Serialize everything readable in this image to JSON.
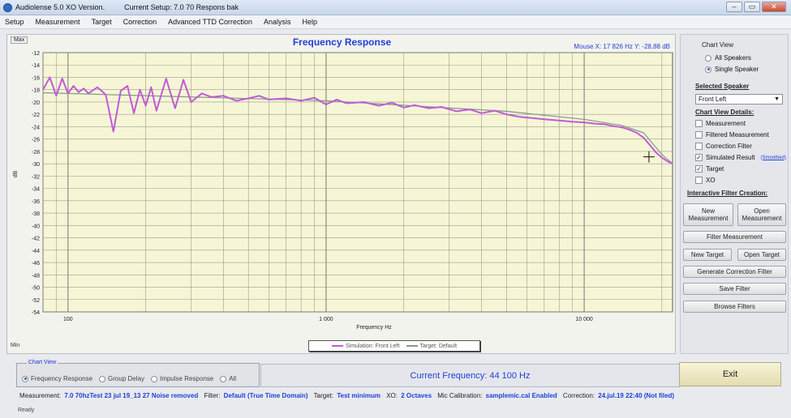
{
  "window": {
    "title": "Audiolense 5.0 XO Version.",
    "current_setup": "Current Setup: 7.0 70 Respons bak",
    "minimize": "–",
    "maximize": "▭",
    "close": "✕"
  },
  "menu": [
    "Setup",
    "Measurement",
    "Target",
    "Correction",
    "Advanced TTD Correction",
    "Analysis",
    "Help"
  ],
  "chart_panel": {
    "max_label": "Max",
    "min_label": "Min",
    "mouse_readout": "Mouse X: 17 826 Hz  Y: -28,88 dB",
    "legend": {
      "simulation": "Simulation: Front Left",
      "target": "Target: Default"
    }
  },
  "chart_data": {
    "type": "line",
    "title": "Frequency Response",
    "xlabel": "Frequency Hz",
    "ylabel": "dB",
    "xscale": "log",
    "xlim": [
      80,
      22000
    ],
    "ylim": [
      -54,
      -12
    ],
    "grid": true,
    "x_tick_labels": [
      "100",
      "1 000",
      "10 000"
    ],
    "x_ticks": [
      100,
      1000,
      10000
    ],
    "y_ticks": [
      -12,
      -14,
      -16,
      -18,
      -20,
      -22,
      -24,
      -26,
      -28,
      -30,
      -32,
      -34,
      -36,
      -38,
      -40,
      -42,
      -44,
      -46,
      -48,
      -50,
      -52,
      -54
    ],
    "series": [
      {
        "name": "Simulation: Front Left",
        "color": "#c25ad8",
        "x": [
          80,
          85,
          90,
          95,
          100,
          105,
          110,
          115,
          120,
          130,
          140,
          150,
          160,
          170,
          180,
          190,
          200,
          210,
          220,
          240,
          260,
          280,
          300,
          330,
          360,
          400,
          450,
          500,
          550,
          600,
          700,
          800,
          900,
          1000,
          1100,
          1200,
          1400,
          1600,
          1800,
          2000,
          2200,
          2500,
          2800,
          3200,
          3600,
          4000,
          4500,
          5000,
          5600,
          6300,
          7000,
          8000,
          9000,
          10000,
          11000,
          12000,
          13000,
          14000,
          15000,
          16000,
          17000,
          18000,
          19000,
          20000,
          21000,
          22000
        ],
        "y": [
          -18.0,
          -16.0,
          -19.0,
          -16.2,
          -18.6,
          -17.4,
          -18.4,
          -17.8,
          -18.6,
          -17.6,
          -18.8,
          -24.8,
          -18.2,
          -17.4,
          -21.8,
          -18.0,
          -20.6,
          -17.6,
          -21.4,
          -16.2,
          -21.0,
          -16.4,
          -20.0,
          -18.6,
          -19.2,
          -19.0,
          -19.8,
          -19.4,
          -19.0,
          -19.6,
          -19.4,
          -19.8,
          -19.3,
          -20.4,
          -19.6,
          -20.2,
          -20.0,
          -20.6,
          -20.1,
          -20.9,
          -20.5,
          -21.0,
          -20.8,
          -21.5,
          -21.2,
          -21.8,
          -21.4,
          -22.0,
          -22.4,
          -22.6,
          -22.8,
          -23.0,
          -23.2,
          -23.3,
          -23.5,
          -23.6,
          -23.9,
          -24.1,
          -24.5,
          -25.0,
          -25.8,
          -27.0,
          -28.2,
          -29.0,
          -29.6,
          -30.0
        ]
      },
      {
        "name": "Target: Default",
        "color": "#7f9a88",
        "x": [
          80,
          1000,
          5000,
          10000,
          14000,
          17000,
          20000,
          22000
        ],
        "y": [
          -18.5,
          -19.8,
          -21.5,
          -22.8,
          -23.8,
          -25.0,
          -28.5,
          -30.0
        ]
      }
    ]
  },
  "sidebar": {
    "chart_view_heading": "Chart View",
    "all_speakers": "All Speakers",
    "single_speaker": "Single Speaker",
    "selected_speaker_heading": "Selected Speaker",
    "selected_speaker_value": "Front Left",
    "chart_view_details_heading": "Chart View Details:",
    "details": [
      {
        "label": "Measurement",
        "checked": false
      },
      {
        "label": "Filtered Measurement",
        "checked": false
      },
      {
        "label": "Correction Filter",
        "checked": false
      },
      {
        "label": "Simulated Result",
        "checked": true
      },
      {
        "label": "Target",
        "checked": true
      },
      {
        "label": "XO",
        "checked": false
      }
    ],
    "smoothed_link": "(Smoothed)",
    "interactive_heading": "Interactive Filter Creation:",
    "new_measurement": "New Measurement",
    "open_measurement": "Open Measurement",
    "filter_measurement": "Filter Measurement",
    "new_target": "New Target",
    "open_target": "Open Target",
    "generate_correction_filter": "Generate Correction Filter",
    "save_filter": "Save Filter",
    "browse_filters": "Browse Filters"
  },
  "bottom": {
    "chart_view_title": "Chart View",
    "views": [
      "Frequency Response",
      "Group Delay",
      "Impulse Response",
      "All"
    ],
    "selected_view": "Frequency Response",
    "current_frequency": "Current Frequency: 44 100 Hz",
    "exit": "Exit"
  },
  "status": {
    "measurement_label": "Measurement:",
    "measurement_value": "7.0 70hzTest 23 jul 19_13 27 Noise removed",
    "filter_label": "Filter:",
    "filter_value": "Default (True Time Domain)",
    "target_label": "Target:",
    "target_value": "Test minimum",
    "xo_label": "XO:",
    "xo_value": "2 Octaves",
    "mic_label": "Mic Calibration:",
    "mic_value": "samplemic.cal Enabled",
    "correction_label": "Correction:",
    "correction_value": "24.jul.19 22:40 (Not filed)",
    "ready": "Ready"
  }
}
